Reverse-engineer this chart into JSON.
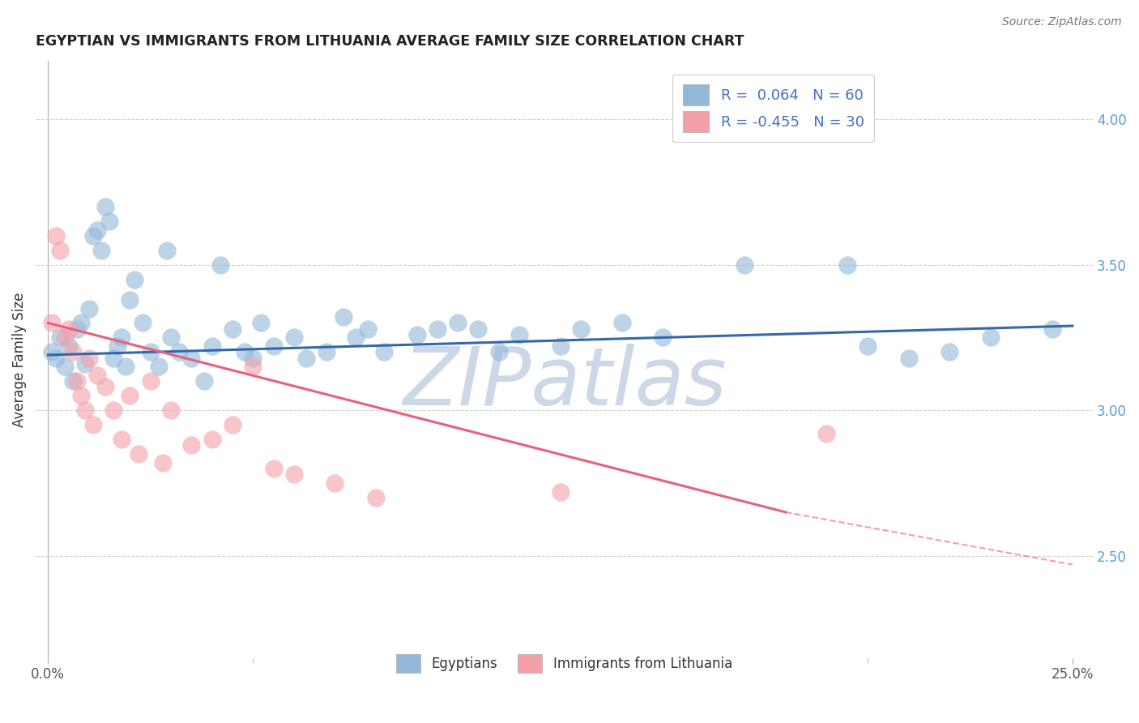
{
  "title": "EGYPTIAN VS IMMIGRANTS FROM LITHUANIA AVERAGE FAMILY SIZE CORRELATION CHART",
  "source_text": "Source: ZipAtlas.com",
  "ylabel": "Average Family Size",
  "right_yticks": [
    2.5,
    3.0,
    3.5,
    4.0
  ],
  "xlim": [
    -0.3,
    25.5
  ],
  "ylim": [
    2.15,
    4.2
  ],
  "blue_color": "#92b8d8",
  "pink_color": "#f4a0a8",
  "line_blue": "#3568a8",
  "line_pink": "#e8607a",
  "blue_N": 60,
  "pink_N": 30,
  "blue_R": 0.064,
  "pink_R": -0.455,
  "background_color": "#ffffff",
  "grid_color": "#cccccc",
  "watermark_text": "ZIPatlas",
  "watermark_color": "#ccd8e8",
  "blue_line_y0": 3.19,
  "blue_line_y1": 3.29,
  "pink_line_y0": 3.3,
  "pink_line_y_solid_end": 2.65,
  "pink_line_x_solid_end": 18.0,
  "pink_line_y_dash_end": 2.47,
  "pink_line_x_dash_end": 25.0,
  "blue_points_x": [
    0.1,
    0.2,
    0.3,
    0.4,
    0.5,
    0.6,
    0.7,
    0.8,
    0.9,
    1.0,
    1.1,
    1.2,
    1.3,
    1.4,
    1.5,
    1.6,
    1.7,
    1.8,
    1.9,
    2.0,
    2.1,
    2.3,
    2.5,
    2.7,
    2.9,
    3.0,
    3.2,
    3.5,
    3.8,
    4.0,
    4.2,
    4.5,
    4.8,
    5.0,
    5.2,
    5.5,
    6.0,
    6.3,
    6.8,
    7.2,
    7.5,
    7.8,
    8.2,
    9.0,
    9.5,
    10.0,
    10.5,
    11.0,
    11.5,
    12.5,
    13.0,
    14.0,
    15.0,
    17.0,
    19.5,
    20.0,
    21.0,
    22.0,
    23.0,
    24.5
  ],
  "blue_points_y": [
    3.2,
    3.18,
    3.25,
    3.15,
    3.22,
    3.1,
    3.28,
    3.3,
    3.16,
    3.35,
    3.6,
    3.62,
    3.55,
    3.7,
    3.65,
    3.18,
    3.22,
    3.25,
    3.15,
    3.38,
    3.45,
    3.3,
    3.2,
    3.15,
    3.55,
    3.25,
    3.2,
    3.18,
    3.1,
    3.22,
    3.5,
    3.28,
    3.2,
    3.18,
    3.3,
    3.22,
    3.25,
    3.18,
    3.2,
    3.32,
    3.25,
    3.28,
    3.2,
    3.26,
    3.28,
    3.3,
    3.28,
    3.2,
    3.26,
    3.22,
    3.28,
    3.3,
    3.25,
    3.5,
    3.5,
    3.22,
    3.18,
    3.2,
    3.25,
    3.28
  ],
  "pink_points_x": [
    0.1,
    0.2,
    0.3,
    0.4,
    0.5,
    0.6,
    0.7,
    0.8,
    0.9,
    1.0,
    1.1,
    1.2,
    1.4,
    1.6,
    1.8,
    2.0,
    2.2,
    2.5,
    2.8,
    3.0,
    3.5,
    4.0,
    4.5,
    5.0,
    5.5,
    6.0,
    7.0,
    8.0,
    12.5,
    19.0
  ],
  "pink_points_y": [
    3.3,
    3.6,
    3.55,
    3.25,
    3.28,
    3.2,
    3.1,
    3.05,
    3.0,
    3.18,
    2.95,
    3.12,
    3.08,
    3.0,
    2.9,
    3.05,
    2.85,
    3.1,
    2.82,
    3.0,
    2.88,
    2.9,
    2.95,
    3.15,
    2.8,
    2.78,
    2.75,
    2.7,
    2.72,
    2.92
  ]
}
